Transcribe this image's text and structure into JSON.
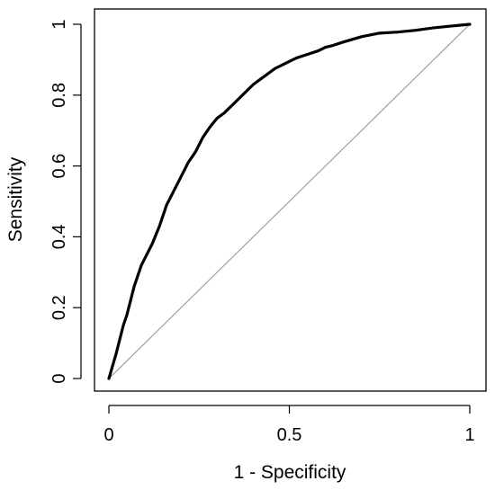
{
  "chart_data": {
    "type": "line",
    "title": "",
    "xlabel": "1 - Specificity",
    "ylabel": "Sensitivity",
    "xlim": [
      0,
      1
    ],
    "ylim": [
      0,
      1
    ],
    "xticks": [
      {
        "value": 0,
        "label": "0"
      },
      {
        "value": 0.5,
        "label": "0.5"
      },
      {
        "value": 1,
        "label": "1"
      }
    ],
    "yticks": [
      {
        "value": 0,
        "label": "0"
      },
      {
        "value": 0.2,
        "label": "0.2"
      },
      {
        "value": 0.4,
        "label": "0.4"
      },
      {
        "value": 0.6,
        "label": "0.6"
      },
      {
        "value": 0.8,
        "label": "0.8"
      },
      {
        "value": 1,
        "label": "1"
      }
    ],
    "grid": false,
    "legend": "none",
    "series": [
      {
        "style": "thick black line",
        "color": "#000000",
        "x": [
          0,
          0.01,
          0.02,
          0.03,
          0.04,
          0.05,
          0.06,
          0.07,
          0.08,
          0.09,
          0.1,
          0.12,
          0.14,
          0.15,
          0.16,
          0.18,
          0.2,
          0.22,
          0.24,
          0.26,
          0.28,
          0.3,
          0.32,
          0.34,
          0.36,
          0.38,
          0.4,
          0.42,
          0.44,
          0.46,
          0.48,
          0.5,
          0.52,
          0.55,
          0.58,
          0.6,
          0.62,
          0.65,
          0.7,
          0.75,
          0.8,
          0.85,
          0.9,
          0.95,
          1.0
        ],
        "y": [
          0,
          0.035,
          0.07,
          0.11,
          0.15,
          0.18,
          0.22,
          0.26,
          0.29,
          0.32,
          0.34,
          0.38,
          0.43,
          0.46,
          0.49,
          0.53,
          0.57,
          0.61,
          0.64,
          0.68,
          0.71,
          0.735,
          0.75,
          0.77,
          0.79,
          0.81,
          0.83,
          0.845,
          0.86,
          0.875,
          0.885,
          0.895,
          0.905,
          0.915,
          0.925,
          0.935,
          0.94,
          0.95,
          0.965,
          0.975,
          0.978,
          0.983,
          0.99,
          0.995,
          1.0
        ]
      },
      {
        "style": "thin gray diagonal reference line",
        "color": "#a0a0a0",
        "x": [
          0,
          1
        ],
        "y": [
          0,
          1
        ]
      }
    ]
  }
}
